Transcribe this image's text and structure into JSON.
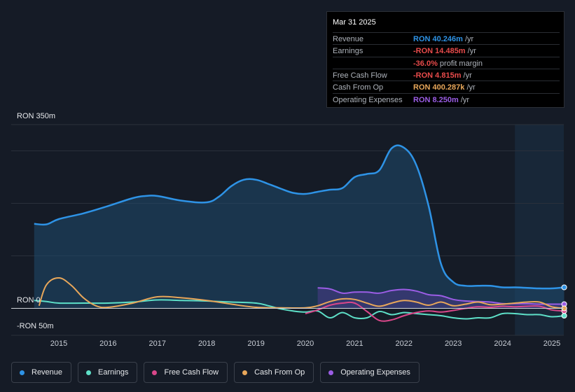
{
  "tooltip": {
    "date": "Mar 31 2025",
    "rows": [
      {
        "label": "Revenue",
        "value": "RON 40.246m",
        "unit": " /yr",
        "color": "#2e93e6"
      },
      {
        "label": "Earnings",
        "value": "-RON 14.485m",
        "unit": " /yr",
        "color": "#e84b4b"
      },
      {
        "label": "",
        "value": "-36.0%",
        "unit": " profit margin",
        "color": "#e84b4b"
      },
      {
        "label": "Free Cash Flow",
        "value": "-RON 4.815m",
        "unit": " /yr",
        "color": "#e84b4b"
      },
      {
        "label": "Cash From Op",
        "value": "RON 400.287k",
        "unit": " /yr",
        "color": "#e8a75a"
      },
      {
        "label": "Operating Expenses",
        "value": "RON 8.250m",
        "unit": " /yr",
        "color": "#9b5de5"
      }
    ]
  },
  "legend": [
    {
      "label": "Revenue",
      "color": "#2e93e6"
    },
    {
      "label": "Earnings",
      "color": "#5ee0c8"
    },
    {
      "label": "Free Cash Flow",
      "color": "#d9478a"
    },
    {
      "label": "Cash From Op",
      "color": "#e8a75a"
    },
    {
      "label": "Operating Expenses",
      "color": "#9b5de5"
    }
  ],
  "chart_data": {
    "type": "line",
    "title": "",
    "xlabel": "",
    "ylabel": "",
    "ylim": [
      -50,
      350
    ],
    "y_tick_labels": [
      "RON 350m",
      "RON 0",
      "-RON 50m"
    ],
    "x_ticks": [
      2015,
      2016,
      2017,
      2018,
      2019,
      2020,
      2021,
      2022,
      2023,
      2024,
      2025
    ],
    "x_tick_labels": [
      "2015",
      "2016",
      "2017",
      "2018",
      "2019",
      "2020",
      "2021",
      "2022",
      "2023",
      "2024",
      "2025"
    ],
    "forecast_shade_from": 2024.25,
    "series": [
      {
        "name": "Revenue",
        "color": "#2e93e6",
        "fill": true,
        "x": [
          2014.5,
          2014.75,
          2015.0,
          2015.5,
          2016.0,
          2016.5,
          2016.75,
          2017.0,
          2017.5,
          2018.0,
          2018.25,
          2018.5,
          2018.75,
          2019.0,
          2019.25,
          2019.5,
          2019.75,
          2020.0,
          2020.25,
          2020.5,
          2020.75,
          2021.0,
          2021.25,
          2021.5,
          2021.75,
          2022.0,
          2022.25,
          2022.5,
          2022.75,
          2023.0,
          2023.25,
          2023.5,
          2023.75,
          2024.0,
          2024.25,
          2024.5,
          2024.75,
          2025.0,
          2025.25
        ],
        "values": [
          161,
          160,
          170,
          181,
          195,
          210,
          214,
          214,
          205,
          202,
          213,
          233,
          245,
          245,
          237,
          228,
          220,
          218,
          222,
          226,
          229,
          250,
          256,
          263,
          305,
          306,
          273,
          195,
          85,
          50,
          43,
          43,
          43,
          40,
          40,
          39,
          38,
          38,
          40
        ]
      },
      {
        "name": "Earnings",
        "color": "#5ee0c8",
        "fill": false,
        "x": [
          2014.5,
          2014.75,
          2015.0,
          2015.5,
          2016.0,
          2016.5,
          2017.0,
          2017.5,
          2018.0,
          2018.5,
          2019.0,
          2019.25,
          2019.5,
          2019.75,
          2020.0,
          2020.25,
          2020.5,
          2020.75,
          2021.0,
          2021.25,
          2021.5,
          2021.75,
          2022.0,
          2022.25,
          2022.5,
          2022.75,
          2023.0,
          2023.25,
          2023.5,
          2023.75,
          2024.0,
          2024.25,
          2024.5,
          2024.75,
          2025.0,
          2025.25
        ],
        "values": [
          15,
          13,
          10,
          10,
          10,
          12,
          16,
          15,
          14,
          12,
          10,
          5,
          -1,
          -5,
          -7,
          -5,
          -18,
          -8,
          -18,
          -18,
          -6,
          -12,
          -8,
          -10,
          -12,
          -14,
          -18,
          -20,
          -18,
          -18,
          -10,
          -10,
          -12,
          -12,
          -16,
          -14
        ]
      },
      {
        "name": "Free Cash Flow",
        "color": "#d9478a",
        "fill": false,
        "x": [
          2020.0,
          2020.25,
          2020.5,
          2020.75,
          2021.0,
          2021.25,
          2021.5,
          2021.75,
          2022.0,
          2022.25,
          2022.5,
          2022.75,
          2023.0,
          2023.25,
          2023.5,
          2023.75,
          2024.0,
          2024.25,
          2024.5,
          2024.75,
          2025.0,
          2025.25
        ],
        "values": [
          -10,
          -3,
          6,
          10,
          10,
          -6,
          -23,
          -22,
          -14,
          -8,
          -5,
          -7,
          -4,
          0,
          3,
          2,
          4,
          3,
          4,
          4,
          -3,
          -5
        ]
      },
      {
        "name": "Cash From Op",
        "color": "#e8a75a",
        "fill": false,
        "x": [
          2014.6,
          2014.75,
          2015.0,
          2015.25,
          2015.5,
          2015.75,
          2016.0,
          2016.5,
          2017.0,
          2017.5,
          2018.0,
          2018.5,
          2019.0,
          2019.5,
          2020.0,
          2020.25,
          2020.5,
          2020.75,
          2021.0,
          2021.25,
          2021.5,
          2021.75,
          2022.0,
          2022.25,
          2022.5,
          2022.75,
          2023.0,
          2023.25,
          2023.5,
          2023.75,
          2024.0,
          2024.25,
          2024.5,
          2024.75,
          2025.0,
          2025.25
        ],
        "values": [
          5,
          45,
          58,
          44,
          20,
          5,
          2,
          10,
          22,
          20,
          15,
          8,
          2,
          1,
          1,
          5,
          13,
          18,
          17,
          10,
          4,
          10,
          15,
          12,
          6,
          12,
          5,
          8,
          12,
          7,
          8,
          10,
          12,
          12,
          3,
          0
        ]
      },
      {
        "name": "Operating Expenses",
        "color": "#9b5de5",
        "fill": true,
        "x": [
          2020.25,
          2020.5,
          2020.75,
          2021.0,
          2021.25,
          2021.5,
          2021.75,
          2022.0,
          2022.25,
          2022.5,
          2022.75,
          2023.0,
          2023.25,
          2023.5,
          2023.75,
          2024.0,
          2024.25,
          2024.5,
          2024.75,
          2025.0,
          2025.25
        ],
        "values": [
          39,
          37,
          29,
          31,
          31,
          29,
          34,
          36,
          33,
          26,
          24,
          17,
          14,
          13,
          12,
          9,
          9,
          9,
          8,
          8,
          8
        ]
      }
    ]
  }
}
